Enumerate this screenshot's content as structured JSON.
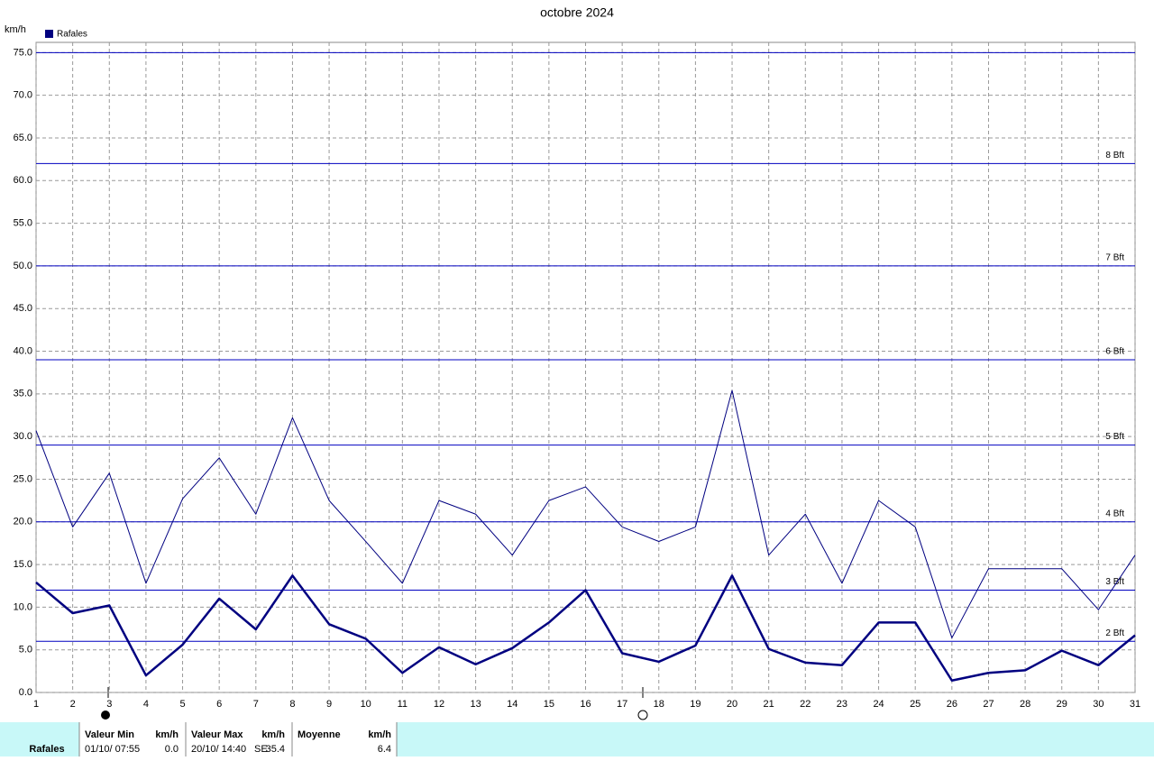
{
  "chart_data": {
    "type": "line",
    "title": "octobre 2024",
    "y_unit": "km/h",
    "x": [
      1,
      2,
      3,
      4,
      5,
      6,
      7,
      8,
      9,
      10,
      11,
      12,
      13,
      14,
      15,
      16,
      17,
      18,
      19,
      20,
      21,
      22,
      23,
      24,
      25,
      26,
      27,
      28,
      29,
      30,
      31
    ],
    "xlim": [
      1,
      31
    ],
    "xticks": [
      1,
      2,
      3,
      4,
      5,
      6,
      7,
      8,
      9,
      10,
      11,
      12,
      13,
      14,
      15,
      16,
      17,
      18,
      19,
      20,
      21,
      22,
      23,
      24,
      25,
      26,
      27,
      28,
      29,
      30,
      31
    ],
    "ylim": [
      0,
      76.2
    ],
    "yticks": [
      {
        "value": 0,
        "label": "0.0"
      },
      {
        "value": 5,
        "label": "5.0"
      },
      {
        "value": 10,
        "label": "10.0"
      },
      {
        "value": 15,
        "label": "15.0"
      },
      {
        "value": 20,
        "label": "20.0"
      },
      {
        "value": 25,
        "label": "25.0"
      },
      {
        "value": 30,
        "label": "30.0"
      },
      {
        "value": 35,
        "label": "35.0"
      },
      {
        "value": 40,
        "label": "40.0"
      },
      {
        "value": 45,
        "label": "45.0"
      },
      {
        "value": 50,
        "label": "50.0"
      },
      {
        "value": 55,
        "label": "55.0"
      },
      {
        "value": 60,
        "label": "60.0"
      },
      {
        "value": 65,
        "label": "65.0"
      },
      {
        "value": 70,
        "label": "70.0"
      },
      {
        "value": 75,
        "label": "75.0"
      }
    ],
    "grid": true,
    "series": [
      {
        "name": "Rafales",
        "color": "#000080",
        "width": 1,
        "values": [
          30.7,
          19.4,
          25.7,
          12.8,
          22.7,
          27.5,
          20.9,
          32.2,
          22.5,
          17.7,
          12.8,
          22.5,
          20.9,
          16.1,
          22.5,
          24.1,
          19.4,
          17.7,
          19.4,
          35.4,
          16.1,
          20.9,
          12.8,
          22.5,
          19.4,
          6.4,
          14.5,
          14.5,
          14.5,
          9.7,
          16.1
        ]
      },
      {
        "color": "#000080",
        "width": 2.5,
        "values": [
          12.9,
          9.3,
          10.2,
          2.0,
          5.6,
          11.0,
          7.4,
          13.7,
          8.0,
          6.3,
          2.3,
          5.3,
          3.3,
          5.2,
          8.2,
          12.0,
          4.6,
          3.6,
          5.5,
          13.7,
          5.1,
          3.5,
          3.2,
          8.2,
          8.2,
          1.4,
          2.3,
          2.6,
          4.9,
          3.2,
          6.7
        ]
      }
    ],
    "reflines": {
      "color": "#0000c0",
      "values": [
        6,
        12,
        20,
        29,
        39,
        50,
        62,
        75
      ],
      "labels": [
        "2 Bft",
        "3 Bft",
        "4 Bft",
        "5 Bft",
        "6 Bft",
        "7 Bft",
        "8 Bft",
        null
      ]
    }
  },
  "table": {
    "row_label": "Rafales",
    "columns": [
      {
        "header": "Valeur Min",
        "unit": "km/h",
        "date": "01/10/ 07:55",
        "value": "0.0"
      },
      {
        "header": "Valeur Max",
        "unit": "km/h",
        "date": "20/10/ 14:40",
        "direction": "SE",
        "value": "35.4"
      },
      {
        "header": "Moyenne",
        "unit": "km/h",
        "value": "6.4"
      }
    ]
  }
}
